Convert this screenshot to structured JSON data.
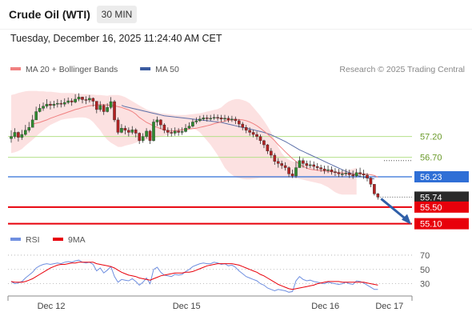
{
  "header": {
    "title": "Crude Oil (WTI)",
    "timeframe": "30 MIN",
    "timestamp": "Tuesday, December 16, 2025 11:24:40 AM CET"
  },
  "colors": {
    "ma20": "#f08080",
    "bollinger_fill": "#fcdcdc",
    "ma50": "#5b6fa8",
    "support_green": "#b5e08a",
    "pivot_blue": "#2f6fd6",
    "price_dark": "#2a2a2a",
    "target_red": "#e8000b",
    "arrow": "#2f5fa8",
    "rsi": "#6f8fe0",
    "rsi_ma": "#e8000b",
    "candle_up": "#2e8b2e",
    "candle_down": "#b22222"
  },
  "chart_data": [
    {
      "type": "candlestick",
      "legend": [
        {
          "name": "MA 20 + Bollinger Bands",
          "color": "#f08080"
        },
        {
          "name": "MA 50",
          "color": "#3a5ba0"
        }
      ],
      "attribution": "Research © 2025 Trading Central",
      "x_ticks": [
        {
          "index": 9,
          "label": "Dec 12"
        },
        {
          "index": 47,
          "label": "Dec 15"
        },
        {
          "index": 86,
          "label": "Dec 16"
        },
        {
          "index": 104,
          "label": "Dec 17"
        }
      ],
      "ylim": [
        54.9,
        58.6
      ],
      "levels": [
        {
          "value": 57.2,
          "label": "57.20",
          "kind": "support",
          "color": "#b5e08a"
        },
        {
          "value": 56.7,
          "label": "56.70",
          "kind": "support",
          "color": "#b5e08a"
        },
        {
          "value": 56.23,
          "label": "56.23",
          "kind": "pivot",
          "color": "#2f6fd6"
        },
        {
          "value": 55.74,
          "label": "55.74",
          "kind": "last",
          "color": "#2a2a2a"
        },
        {
          "value": 55.5,
          "label": "55.50",
          "kind": "target",
          "color": "#e8000b"
        },
        {
          "value": 55.1,
          "label": "55.10",
          "kind": "target",
          "color": "#e8000b"
        }
      ],
      "close": [
        57.2,
        57.3,
        57.18,
        57.25,
        57.35,
        57.42,
        57.6,
        57.8,
        57.88,
        57.93,
        57.98,
        57.95,
        57.98,
        58.0,
        57.98,
        58.02,
        58.06,
        58.03,
        58.1,
        58.15,
        58.09,
        58.08,
        58.12,
        58.05,
        57.85,
        57.95,
        57.8,
        57.9,
        58.04,
        57.6,
        57.3,
        57.4,
        57.35,
        57.3,
        57.36,
        57.28,
        57.1,
        57.2,
        57.33,
        57.1,
        57.55,
        57.6,
        57.48,
        57.35,
        57.3,
        57.28,
        57.33,
        57.3,
        57.32,
        57.4,
        57.45,
        57.55,
        57.58,
        57.62,
        57.65,
        57.63,
        57.64,
        57.66,
        57.65,
        57.62,
        57.64,
        57.6,
        57.62,
        57.58,
        57.5,
        57.42,
        57.35,
        57.3,
        57.25,
        57.2,
        57.1,
        57.0,
        56.85,
        56.75,
        56.6,
        56.55,
        56.5,
        56.45,
        56.3,
        56.25,
        56.45,
        56.62,
        56.55,
        56.5,
        56.52,
        56.48,
        56.45,
        56.42,
        56.38,
        56.4,
        56.35,
        56.33,
        56.3,
        56.3,
        56.32,
        56.28,
        56.25,
        56.33,
        56.3,
        56.27,
        56.2,
        56.05,
        55.82,
        55.74
      ],
      "high": [
        57.35,
        57.4,
        57.32,
        57.36,
        57.48,
        57.55,
        57.72,
        57.92,
        57.98,
        58.02,
        58.1,
        58.05,
        58.06,
        58.1,
        58.08,
        58.12,
        58.14,
        58.12,
        58.22,
        58.24,
        58.16,
        58.17,
        58.2,
        58.14,
        58.0,
        58.05,
        57.98,
        58.0,
        58.15,
        58.08,
        57.66,
        57.5,
        57.46,
        57.42,
        57.45,
        57.4,
        57.3,
        57.28,
        57.4,
        57.36,
        57.62,
        57.68,
        57.62,
        57.52,
        57.42,
        57.4,
        57.42,
        57.4,
        57.42,
        57.5,
        57.54,
        57.62,
        57.66,
        57.7,
        57.72,
        57.72,
        57.72,
        57.74,
        57.73,
        57.72,
        57.72,
        57.7,
        57.7,
        57.68,
        57.62,
        57.55,
        57.48,
        57.42,
        57.36,
        57.32,
        57.25,
        57.12,
        57.02,
        56.92,
        56.8,
        56.68,
        56.62,
        56.58,
        56.48,
        56.4,
        56.6,
        56.72,
        56.68,
        56.62,
        56.62,
        56.6,
        56.56,
        56.52,
        56.5,
        56.5,
        56.48,
        56.44,
        56.42,
        56.4,
        56.42,
        56.4,
        56.38,
        56.42,
        56.45,
        56.4,
        56.32,
        56.22,
        56.05,
        55.84
      ],
      "low": [
        57.05,
        57.15,
        57.08,
        57.12,
        57.22,
        57.3,
        57.45,
        57.68,
        57.78,
        57.82,
        57.88,
        57.85,
        57.88,
        57.9,
        57.9,
        57.92,
        57.98,
        57.94,
        58.0,
        58.05,
        58.0,
        57.98,
        58.02,
        57.92,
        57.76,
        57.8,
        57.72,
        57.78,
        57.86,
        57.55,
        57.25,
        57.28,
        57.25,
        57.2,
        57.25,
        57.18,
        57.02,
        57.05,
        57.15,
        57.02,
        57.08,
        57.45,
        57.38,
        57.28,
        57.2,
        57.2,
        57.22,
        57.22,
        57.24,
        57.3,
        57.38,
        57.42,
        57.5,
        57.55,
        57.58,
        57.56,
        57.58,
        57.6,
        57.58,
        57.55,
        57.56,
        57.54,
        57.55,
        57.5,
        57.42,
        57.35,
        57.28,
        57.22,
        57.18,
        57.12,
        57.02,
        56.92,
        56.78,
        56.68,
        56.52,
        56.45,
        56.42,
        56.38,
        56.22,
        56.2,
        56.2,
        56.48,
        56.45,
        56.42,
        56.44,
        56.4,
        56.38,
        56.35,
        56.3,
        56.32,
        56.28,
        56.25,
        56.22,
        56.22,
        56.25,
        56.2,
        56.18,
        56.22,
        56.22,
        56.18,
        56.12,
        55.98,
        55.78,
        55.68
      ],
      "ma20": [
        57.5,
        57.52,
        57.54,
        57.57,
        57.6,
        57.64,
        57.67,
        57.7,
        57.73,
        57.76,
        57.79,
        57.82,
        57.85,
        57.87,
        57.9,
        57.92,
        57.94,
        57.95,
        57.96,
        57.97,
        57.97,
        57.96,
        57.95,
        57.94,
        57.92,
        57.9,
        57.87,
        57.84,
        57.8,
        57.74,
        57.66,
        57.6,
        57.54,
        57.5,
        57.45,
        57.42,
        57.39,
        57.36,
        57.34,
        57.33,
        57.34,
        57.35,
        57.36,
        57.37,
        57.38,
        57.39,
        57.4,
        57.42,
        57.44,
        57.46,
        57.48,
        57.51,
        57.53,
        57.55,
        57.57,
        57.59,
        57.6,
        57.61,
        57.61,
        57.6,
        57.58,
        57.55,
        57.51,
        57.46,
        57.4,
        57.33,
        57.26,
        57.18,
        57.1,
        57.0,
        56.92,
        56.83,
        56.75,
        56.67,
        56.6,
        56.53,
        56.48,
        56.44,
        56.41,
        56.4,
        56.39,
        56.38,
        56.37,
        56.36,
        56.35,
        56.34,
        56.33,
        56.32,
        56.31,
        56.3,
        56.3,
        56.3,
        56.3,
        56.3,
        56.29,
        56.28,
        56.26,
        56.22
      ],
      "bb_upper": [
        58.2,
        58.22,
        58.25,
        58.27,
        58.29,
        58.3,
        58.3,
        58.3,
        58.29,
        58.29,
        58.28,
        58.28,
        58.27,
        58.26,
        58.25,
        58.25,
        58.25,
        58.25,
        58.24,
        58.23,
        58.22,
        58.22,
        58.21,
        58.21,
        58.2,
        58.2,
        58.19,
        58.18,
        58.2,
        58.2,
        58.2,
        58.18,
        58.15,
        58.1,
        58.05,
        58.0,
        57.95,
        57.9,
        57.85,
        57.82,
        57.8,
        57.78,
        57.76,
        57.75,
        57.74,
        57.73,
        57.72,
        57.72,
        57.72,
        57.72,
        57.73,
        57.74,
        57.75,
        57.76,
        57.78,
        57.8,
        57.82,
        57.84,
        57.86,
        57.9,
        57.98,
        58.04,
        58.08,
        58.1,
        58.1,
        58.08,
        58.05,
        58.0,
        57.9,
        57.8,
        57.7,
        57.58,
        57.45,
        57.3,
        57.12,
        56.95,
        56.8,
        56.7,
        56.64,
        56.6,
        56.58,
        56.56,
        56.54,
        56.52,
        56.5,
        56.48,
        56.46,
        56.44,
        56.42,
        56.4,
        56.39,
        56.38,
        56.37,
        56.37,
        56.38,
        56.4,
        56.42,
        56.45
      ],
      "bb_lower": [
        56.8,
        56.82,
        56.85,
        56.9,
        56.98,
        57.05,
        57.12,
        57.2,
        57.28,
        57.35,
        57.42,
        57.48,
        57.52,
        57.56,
        57.6,
        57.62,
        57.63,
        57.64,
        57.65,
        57.66,
        57.66,
        57.65,
        57.62,
        57.55,
        57.45,
        57.35,
        57.22,
        57.12,
        57.05,
        57.0,
        56.95,
        56.95,
        56.98,
        57.0,
        57.02,
        57.05,
        57.08,
        57.1,
        57.12,
        57.14,
        57.16,
        57.18,
        57.2,
        57.22,
        57.24,
        57.26,
        57.28,
        57.3,
        57.32,
        57.34,
        57.36,
        57.38,
        57.36,
        57.3,
        57.2,
        57.1,
        57.0,
        56.88,
        56.75,
        56.6,
        56.45,
        56.35,
        56.28,
        56.22,
        56.2,
        56.18,
        56.17,
        56.17,
        56.18,
        56.19,
        56.2,
        56.2,
        56.2,
        56.2,
        56.2,
        56.2,
        56.2,
        56.2,
        56.2,
        56.2,
        56.2,
        56.18,
        56.16,
        56.14,
        56.12,
        56.1,
        56.08,
        56.06,
        56.02,
        55.98,
        55.92,
        55.86,
        55.82,
        55.8,
        55.8,
        55.8,
        55.8,
        55.8
      ],
      "ma50": [
        57.95,
        57.92,
        57.9,
        57.88,
        57.86,
        57.84,
        57.82,
        57.8,
        57.78,
        57.76,
        57.74,
        57.72,
        57.7,
        57.69,
        57.68,
        57.67,
        57.66,
        57.65,
        57.64,
        57.63,
        57.62,
        57.61,
        57.6,
        57.59,
        57.58,
        57.57,
        57.56,
        57.55,
        57.54,
        57.52,
        57.5,
        57.48,
        57.46,
        57.44,
        57.42,
        57.4,
        57.38,
        57.36,
        57.34,
        57.32,
        57.3,
        57.27,
        57.24,
        57.2,
        57.16,
        57.12,
        57.08,
        57.03,
        56.98,
        56.93,
        56.88,
        56.84,
        56.8,
        56.76,
        56.72,
        56.68,
        56.64,
        56.6,
        56.56,
        56.52,
        56.48,
        56.44,
        56.4,
        56.36,
        56.33,
        56.3,
        56.27,
        56.24,
        56.22,
        56.2,
        56.19,
        56.18
      ]
    },
    {
      "type": "line",
      "legend": [
        {
          "name": "RSI",
          "color": "#6f8fe0"
        },
        {
          "name": "9MA",
          "color": "#e8000b"
        }
      ],
      "ylim": [
        15,
        80
      ],
      "y_ticks": [
        {
          "value": 70,
          "label": "70"
        },
        {
          "value": 50,
          "label": "50"
        },
        {
          "value": 30,
          "label": "30"
        }
      ],
      "rsi": [
        33,
        30,
        31,
        33,
        38,
        42,
        46,
        52,
        55,
        57,
        58,
        57,
        58,
        59,
        58,
        60,
        61,
        60,
        62,
        63,
        60,
        59,
        60,
        57,
        48,
        52,
        45,
        49,
        54,
        40,
        32,
        36,
        35,
        34,
        37,
        33,
        28,
        32,
        38,
        30,
        50,
        53,
        46,
        42,
        41,
        40,
        43,
        42,
        43,
        47,
        50,
        54,
        56,
        58,
        59,
        58,
        58,
        60,
        59,
        57,
        58,
        55,
        56,
        53,
        48,
        44,
        40,
        38,
        36,
        34,
        30,
        28,
        24,
        22,
        20,
        22,
        21,
        20,
        18,
        19,
        34,
        40,
        36,
        34,
        35,
        33,
        32,
        31,
        30,
        32,
        31,
        30,
        29,
        30,
        32,
        30,
        29,
        34,
        33,
        31,
        28,
        25,
        22,
        22
      ],
      "rsi_ma": [
        33,
        32,
        32,
        32,
        33,
        35,
        37,
        40,
        43,
        46,
        49,
        52,
        54,
        56,
        57,
        57,
        58,
        59,
        59,
        60,
        60,
        60,
        60,
        60,
        58,
        57,
        56,
        55,
        54,
        52,
        49,
        46,
        44,
        42,
        41,
        40,
        38,
        37,
        36,
        35,
        37,
        39,
        41,
        42,
        43,
        44,
        45,
        45,
        45,
        46,
        46,
        47,
        49,
        51,
        53,
        55,
        56,
        57,
        58,
        58,
        58,
        58,
        58,
        57,
        56,
        54,
        52,
        50,
        48,
        46,
        43,
        41,
        38,
        35,
        32,
        29,
        27,
        25,
        23,
        22,
        23,
        24,
        25,
        26,
        27,
        28,
        30,
        31,
        32,
        33,
        33,
        33,
        33,
        32,
        32,
        32,
        32,
        32,
        32,
        32,
        31,
        30,
        29,
        28
      ]
    }
  ]
}
